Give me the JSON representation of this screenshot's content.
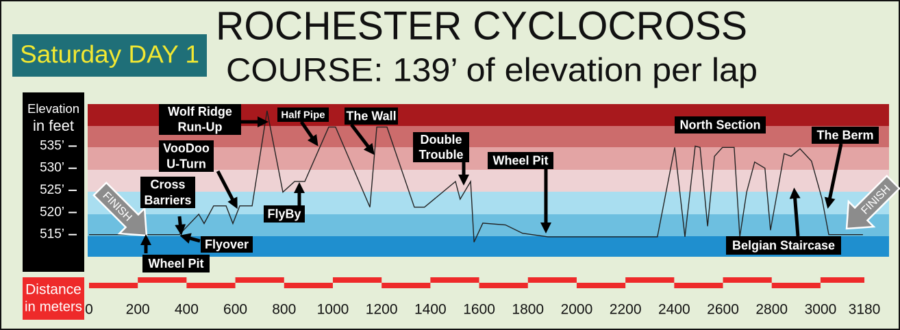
{
  "chart_data": {
    "type": "line",
    "title": "ROCHESTER CYCLOCROSS",
    "subtitle": "COURSE: 139’ of elevation per lap",
    "badge": "Saturday DAY 1",
    "y_label": [
      "Elevation",
      "in feet"
    ],
    "x_label": [
      "Distance",
      "in meters"
    ],
    "color": "#222222",
    "x": [
      0,
      370,
      450,
      472,
      511,
      562,
      590,
      618,
      669,
      730,
      795,
      843,
      885,
      983,
      1011,
      1152,
      1180,
      1222,
      1334,
      1376,
      1503,
      1522,
      1565,
      1579,
      1615,
      1708,
      1778,
      1882,
      2331,
      2402,
      2444,
      2486,
      2506,
      2537,
      2565,
      2598,
      2646,
      2669,
      2697,
      2730,
      2772,
      2795,
      2823,
      2851,
      2879,
      2916,
      2963,
      3006,
      3034,
      3174
    ],
    "values": [
      515,
      515,
      519.6,
      517.5,
      521.5,
      521.5,
      517.5,
      521.5,
      521.5,
      543,
      524.6,
      527,
      527,
      539.3,
      539.3,
      521.2,
      539.3,
      539.3,
      521.2,
      521.2,
      527,
      523,
      527,
      513.3,
      517.6,
      517.2,
      515.3,
      514.5,
      514.5,
      534.7,
      514.5,
      535,
      534.7,
      516.9,
      532.7,
      534.7,
      534.7,
      514.5,
      524.6,
      531.4,
      530,
      516,
      524.6,
      533.3,
      532.7,
      534.4,
      531.6,
      523.1,
      515,
      515
    ],
    "xlim": [
      0,
      3180
    ],
    "ylim": [
      510,
      544.5
    ],
    "yticks": [
      {
        "value": 515,
        "label": "515’"
      },
      {
        "value": 520,
        "label": "520’"
      },
      {
        "value": 525,
        "label": "525’"
      },
      {
        "value": 530,
        "label": "530’"
      },
      {
        "value": 535,
        "label": "535’"
      }
    ],
    "xticks": [
      0,
      200,
      400,
      600,
      800,
      1000,
      1200,
      1400,
      1600,
      1800,
      2000,
      2200,
      2400,
      2600,
      2800,
      3000,
      3180
    ],
    "annotations": [
      {
        "text": [
          "FINISH"
        ]
      },
      {
        "text": [
          "Cross",
          "Barriers"
        ]
      },
      {
        "text": [
          "Wheel Pit"
        ]
      },
      {
        "text": [
          "Flyover"
        ]
      },
      {
        "text": [
          "VooDoo",
          "U-Turn"
        ]
      },
      {
        "text": [
          "Wolf Ridge",
          "Run-Up"
        ]
      },
      {
        "text": [
          "FlyBy"
        ]
      },
      {
        "text": [
          "Half Pipe"
        ]
      },
      {
        "text": [
          "The Wall"
        ]
      },
      {
        "text": [
          "Double",
          "Trouble"
        ]
      },
      {
        "text": [
          "Wheel Pit"
        ]
      },
      {
        "text": [
          "North Section"
        ]
      },
      {
        "text": [
          "The Berm"
        ]
      },
      {
        "text": [
          "Belgian Staircase"
        ]
      },
      {
        "text": [
          "FINISH"
        ]
      }
    ]
  }
}
